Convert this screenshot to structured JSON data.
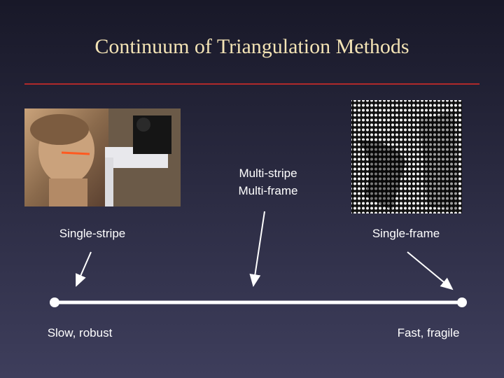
{
  "title": "Continuum of Triangulation Methods",
  "middle_label": [
    "Multi-stripe",
    "Multi-frame"
  ],
  "left_label": "Single-stripe",
  "right_label": "Single-frame",
  "left_end": "Slow, robust",
  "right_end": "Fast, fragile"
}
